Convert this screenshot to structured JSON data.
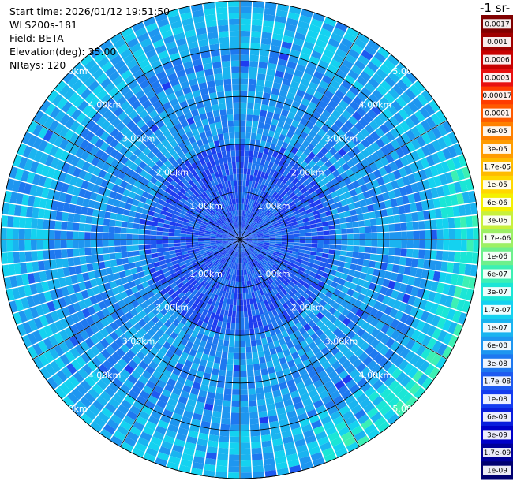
{
  "header": {
    "start_time": "Start time: 2026/01/12 19:51:50",
    "instrument": "WLS200s-181",
    "field": "Field: BETA",
    "elevation": "Elevation(deg): 35.00",
    "nrays": "NRays: 120"
  },
  "chart_data": {
    "type": "heatmap",
    "projection": "polar (PPI)",
    "field": "BETA",
    "n_rays": 120,
    "max_range_km": 5.0,
    "range_rings_km": [
      1.0,
      2.0,
      3.0,
      4.0,
      5.0
    ],
    "range_ring_labels": [
      "1.00km",
      "2.00km",
      "3.00km",
      "4.00km",
      "5.00km"
    ],
    "colorbar_unit_text": "-1 sr-",
    "colorbar": [
      {
        "label": "0.0017",
        "color": "#800000"
      },
      {
        "label": "0.001",
        "color": "#a00000"
      },
      {
        "label": "0.0006",
        "color": "#c80000"
      },
      {
        "label": "0.0003",
        "color": "#e81010"
      },
      {
        "label": "0.00017",
        "color": "#ff3c00"
      },
      {
        "label": "0.0001",
        "color": "#ff5a00"
      },
      {
        "label": "6e-05",
        "color": "#ff8000"
      },
      {
        "label": "3e-05",
        "color": "#ff9c00"
      },
      {
        "label": "1.7e-05",
        "color": "#ffbb00"
      },
      {
        "label": "1e-05",
        "color": "#ffd800"
      },
      {
        "label": "6e-06",
        "color": "#f4f000"
      },
      {
        "label": "3e-06",
        "color": "#c8f03c"
      },
      {
        "label": "1.7e-06",
        "color": "#9cf064"
      },
      {
        "label": "1e-06",
        "color": "#6ef08c"
      },
      {
        "label": "6e-07",
        "color": "#3cf0b4"
      },
      {
        "label": "3e-07",
        "color": "#1ae6d6"
      },
      {
        "label": "1.7e-07",
        "color": "#14d2f0"
      },
      {
        "label": "1e-07",
        "color": "#1ab4f0"
      },
      {
        "label": "6e-08",
        "color": "#1e96f0"
      },
      {
        "label": "3e-08",
        "color": "#1e78f0"
      },
      {
        "label": "1.7e-08",
        "color": "#1e5af0"
      },
      {
        "label": "1e-08",
        "color": "#143cf0"
      },
      {
        "label": "6e-09",
        "color": "#0a1edc"
      },
      {
        "label": "3e-09",
        "color": "#0000c8"
      },
      {
        "label": "1.7e-09",
        "color": "#00009a"
      },
      {
        "label": "1e-09",
        "color": "#000070"
      }
    ],
    "dominant_regions": [
      {
        "range_km": [
          0.0,
          2.0
        ],
        "level": "3e-09 to 3e-08",
        "color": "#1e3cf0"
      },
      {
        "range_km": [
          2.0,
          4.0
        ],
        "level": "3e-08 to 1e-07",
        "color": "#1e8ef0"
      },
      {
        "range_km": [
          4.0,
          5.0
        ],
        "level": "1e-07 to 3e-07",
        "color": "#14c8f0",
        "note": "cyan band in east and south-east"
      }
    ]
  }
}
